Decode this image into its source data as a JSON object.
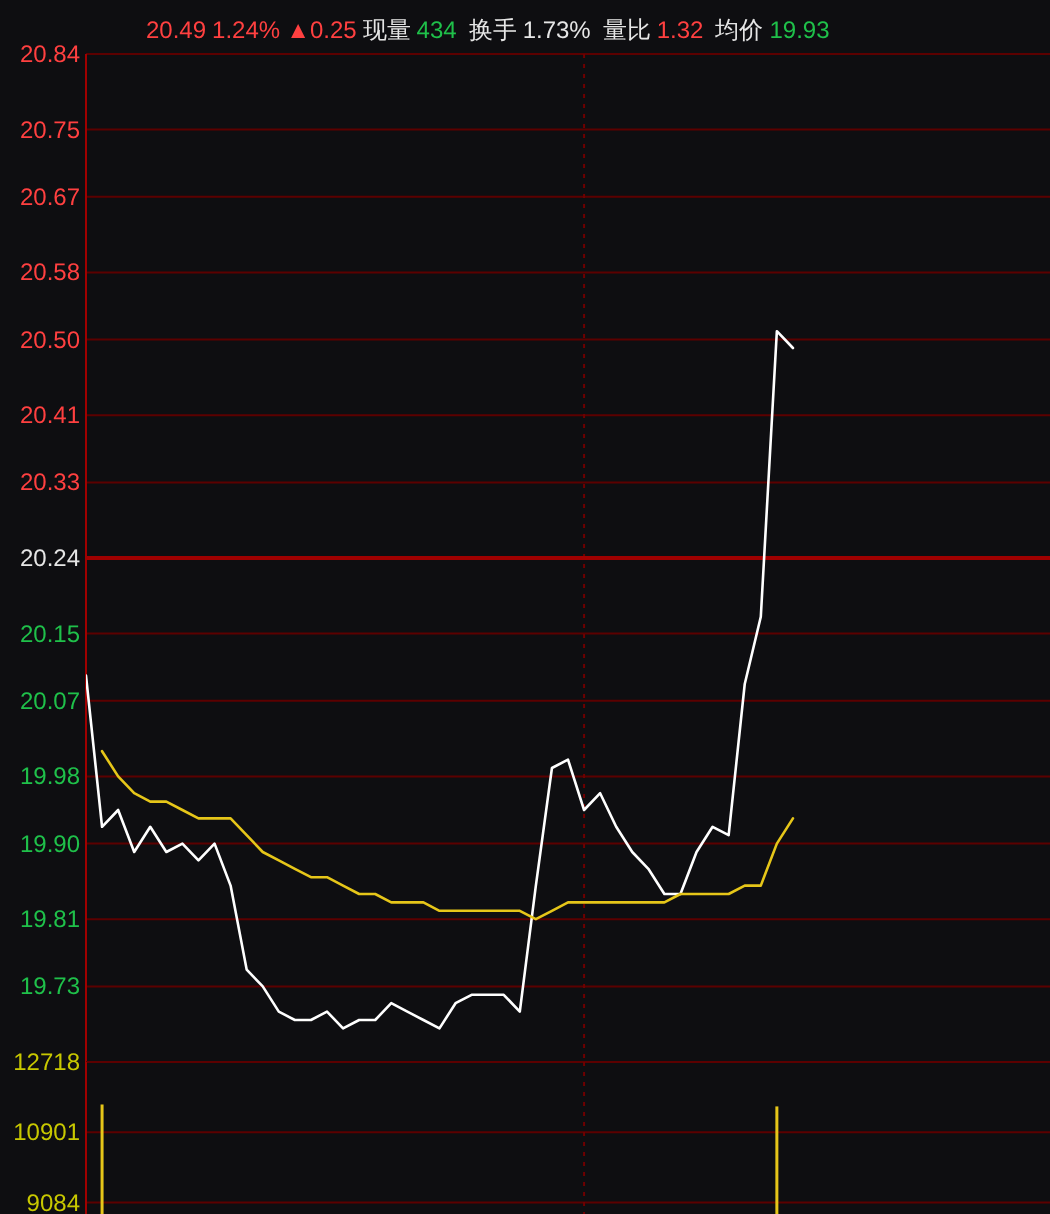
{
  "chart_data": [
    {
      "type": "line",
      "categories": [
        null,
        null,
        null,
        null,
        null,
        null,
        null,
        null,
        null,
        null,
        null,
        null,
        null,
        null,
        null,
        null,
        null,
        null,
        null,
        null,
        null,
        null,
        null,
        null,
        null,
        null,
        null,
        null,
        null,
        null,
        null,
        null,
        null,
        null,
        null,
        null,
        null,
        null,
        null,
        null,
        null,
        null,
        null,
        null,
        null,
        null,
        null,
        null,
        null,
        null,
        null,
        null,
        null,
        null,
        null,
        null,
        null,
        null,
        null,
        null,
        null
      ],
      "series": [
        {
          "color": "#ffffff",
          "values": [
            20.1,
            19.92,
            19.94,
            19.89,
            19.92,
            19.89,
            19.9,
            19.88,
            19.9,
            19.85,
            19.75,
            19.73,
            19.7,
            19.69,
            19.69,
            19.7,
            19.68,
            19.69,
            19.69,
            19.71,
            19.7,
            19.69,
            19.68,
            19.71,
            19.72,
            19.72,
            19.72,
            19.7,
            19.85,
            19.99,
            20.0,
            19.94,
            19.96,
            19.92,
            19.89,
            19.87,
            19.84,
            19.84,
            19.89,
            19.92,
            19.91,
            20.09,
            20.17,
            20.51,
            20.49,
            null,
            null,
            null,
            null,
            null,
            null,
            null,
            null,
            null,
            null,
            null,
            null,
            null,
            null,
            null,
            null
          ]
        },
        {
          "color": "#e6c619",
          "values": [
            null,
            20.01,
            19.98,
            19.96,
            19.95,
            19.95,
            19.94,
            19.93,
            19.93,
            19.93,
            19.91,
            19.89,
            19.88,
            19.87,
            19.86,
            19.86,
            19.85,
            19.84,
            19.84,
            19.83,
            19.83,
            19.83,
            19.82,
            19.82,
            19.82,
            19.82,
            19.82,
            19.82,
            19.81,
            19.82,
            19.83,
            19.83,
            19.83,
            19.83,
            19.83,
            19.83,
            19.83,
            19.84,
            19.84,
            19.84,
            19.84,
            19.85,
            19.85,
            19.9,
            19.93,
            null,
            null,
            null,
            null,
            null,
            null,
            null,
            null,
            null,
            null,
            null,
            null,
            null,
            null,
            null,
            null
          ]
        }
      ],
      "ylim": [
        19.64,
        20.84
      ],
      "yticks": [
        20.84,
        20.75,
        20.67,
        20.58,
        {
          "value": 20.5,
          "label": "20.50"
        },
        20.41,
        20.33,
        20.24,
        20.15,
        20.07,
        19.98,
        {
          "value": 19.9,
          "label": "19.90"
        },
        19.81,
        19.73
      ],
      "grid": "y",
      "tick_labels": "y",
      "ref_lines": [
        {
          "axis": "y",
          "value": 20.24,
          "color": "#a00000"
        }
      ],
      "annotations": [
        "20.49",
        "1.24%",
        "▲0.25",
        "现量",
        "434",
        "换手",
        "1.73%",
        "量比",
        "1.32",
        "均价",
        "19.93"
      ]
    },
    {
      "type": "bar",
      "categories": [
        null,
        null,
        null,
        null,
        null,
        null,
        null,
        null,
        null,
        null,
        null,
        null,
        null,
        null,
        null,
        null,
        null,
        null,
        null,
        null,
        null,
        null,
        null,
        null,
        null,
        null,
        null,
        null,
        null,
        null,
        null,
        null,
        null,
        null,
        null,
        null,
        null,
        null,
        null,
        null,
        null,
        null,
        null,
        null,
        null,
        null,
        null,
        null,
        null,
        null,
        null,
        null,
        null,
        null,
        null,
        null,
        null,
        null,
        null,
        null,
        null
      ],
      "values": [
        null,
        11620,
        null,
        null,
        null,
        null,
        null,
        null,
        null,
        null,
        null,
        null,
        null,
        null,
        null,
        null,
        null,
        null,
        null,
        null,
        null,
        null,
        null,
        null,
        null,
        null,
        null,
        null,
        null,
        null,
        null,
        null,
        null,
        null,
        null,
        null,
        null,
        null,
        null,
        null,
        null,
        null,
        null,
        11570,
        null,
        null,
        null,
        null,
        null,
        null,
        null,
        null,
        null,
        null,
        null,
        null,
        null,
        null,
        null,
        null,
        null
      ],
      "color": "#e6c619",
      "ylim": [
        8790,
        12718
      ],
      "yticks": [
        12718,
        10901,
        9084
      ],
      "grid": "y",
      "tick_labels": "y"
    }
  ]
}
